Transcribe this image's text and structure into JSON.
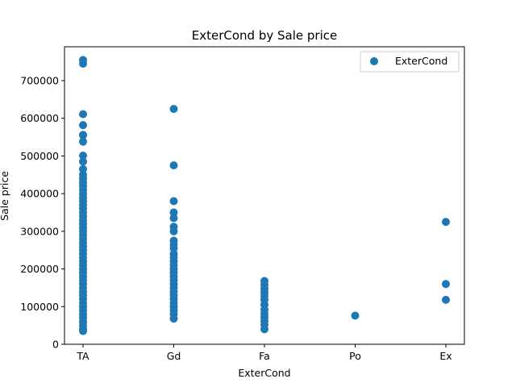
{
  "chart_data": {
    "type": "scatter",
    "title": "ExterCond by Sale price",
    "xlabel": "ExterCond",
    "ylabel": "Sale price",
    "categories": [
      "TA",
      "Gd",
      "Fa",
      "Po",
      "Ex"
    ],
    "ylim": [
      0,
      790000
    ],
    "yticks": [
      0,
      100000,
      200000,
      300000,
      400000,
      500000,
      600000,
      700000
    ],
    "ytick_labels": [
      "0",
      "100000",
      "200000",
      "300000",
      "400000",
      "500000",
      "600000",
      "700000"
    ],
    "grid": false,
    "legend_position": "top-right",
    "series": [
      {
        "name": "ExterCond",
        "color": "#1f77b4",
        "points": [
          {
            "x": "TA",
            "y": 755000
          },
          {
            "x": "TA",
            "y": 745000
          },
          {
            "x": "TA",
            "y": 611000
          },
          {
            "x": "TA",
            "y": 582000
          },
          {
            "x": "TA",
            "y": 556000
          },
          {
            "x": "TA",
            "y": 555000
          },
          {
            "x": "TA",
            "y": 538000
          },
          {
            "x": "TA",
            "y": 501000
          },
          {
            "x": "TA",
            "y": 485000
          },
          {
            "x": "TA",
            "y": 465000
          },
          {
            "x": "TA",
            "y": 450000
          },
          {
            "x": "TA",
            "y": 440000
          },
          {
            "x": "TA",
            "y": 430000
          },
          {
            "x": "TA",
            "y": 420000
          },
          {
            "x": "TA",
            "y": 410000
          },
          {
            "x": "TA",
            "y": 400000
          },
          {
            "x": "TA",
            "y": 390000
          },
          {
            "x": "TA",
            "y": 380000
          },
          {
            "x": "TA",
            "y": 370000
          },
          {
            "x": "TA",
            "y": 360000
          },
          {
            "x": "TA",
            "y": 350000
          },
          {
            "x": "TA",
            "y": 340000
          },
          {
            "x": "TA",
            "y": 330000
          },
          {
            "x": "TA",
            "y": 320000
          },
          {
            "x": "TA",
            "y": 310000
          },
          {
            "x": "TA",
            "y": 300000
          },
          {
            "x": "TA",
            "y": 290000
          },
          {
            "x": "TA",
            "y": 280000
          },
          {
            "x": "TA",
            "y": 270000
          },
          {
            "x": "TA",
            "y": 260000
          },
          {
            "x": "TA",
            "y": 250000
          },
          {
            "x": "TA",
            "y": 240000
          },
          {
            "x": "TA",
            "y": 230000
          },
          {
            "x": "TA",
            "y": 220000
          },
          {
            "x": "TA",
            "y": 210000
          },
          {
            "x": "TA",
            "y": 200000
          },
          {
            "x": "TA",
            "y": 190000
          },
          {
            "x": "TA",
            "y": 180000
          },
          {
            "x": "TA",
            "y": 170000
          },
          {
            "x": "TA",
            "y": 160000
          },
          {
            "x": "TA",
            "y": 150000
          },
          {
            "x": "TA",
            "y": 140000
          },
          {
            "x": "TA",
            "y": 130000
          },
          {
            "x": "TA",
            "y": 120000
          },
          {
            "x": "TA",
            "y": 110000
          },
          {
            "x": "TA",
            "y": 100000
          },
          {
            "x": "TA",
            "y": 90000
          },
          {
            "x": "TA",
            "y": 80000
          },
          {
            "x": "TA",
            "y": 70000
          },
          {
            "x": "TA",
            "y": 60000
          },
          {
            "x": "TA",
            "y": 50000
          },
          {
            "x": "TA",
            "y": 40000
          },
          {
            "x": "TA",
            "y": 35000
          },
          {
            "x": "Gd",
            "y": 625000
          },
          {
            "x": "Gd",
            "y": 475000
          },
          {
            "x": "Gd",
            "y": 380000
          },
          {
            "x": "Gd",
            "y": 350000
          },
          {
            "x": "Gd",
            "y": 335000
          },
          {
            "x": "Gd",
            "y": 312000
          },
          {
            "x": "Gd",
            "y": 300000
          },
          {
            "x": "Gd",
            "y": 275000
          },
          {
            "x": "Gd",
            "y": 265000
          },
          {
            "x": "Gd",
            "y": 255000
          },
          {
            "x": "Gd",
            "y": 240000
          },
          {
            "x": "Gd",
            "y": 230000
          },
          {
            "x": "Gd",
            "y": 220000
          },
          {
            "x": "Gd",
            "y": 210000
          },
          {
            "x": "Gd",
            "y": 200000
          },
          {
            "x": "Gd",
            "y": 190000
          },
          {
            "x": "Gd",
            "y": 180000
          },
          {
            "x": "Gd",
            "y": 170000
          },
          {
            "x": "Gd",
            "y": 160000
          },
          {
            "x": "Gd",
            "y": 150000
          },
          {
            "x": "Gd",
            "y": 140000
          },
          {
            "x": "Gd",
            "y": 130000
          },
          {
            "x": "Gd",
            "y": 120000
          },
          {
            "x": "Gd",
            "y": 110000
          },
          {
            "x": "Gd",
            "y": 100000
          },
          {
            "x": "Gd",
            "y": 90000
          },
          {
            "x": "Gd",
            "y": 80000
          },
          {
            "x": "Gd",
            "y": 68000
          },
          {
            "x": "Fa",
            "y": 168000
          },
          {
            "x": "Fa",
            "y": 158000
          },
          {
            "x": "Fa",
            "y": 148000
          },
          {
            "x": "Fa",
            "y": 138000
          },
          {
            "x": "Fa",
            "y": 128000
          },
          {
            "x": "Fa",
            "y": 118000
          },
          {
            "x": "Fa",
            "y": 105000
          },
          {
            "x": "Fa",
            "y": 92000
          },
          {
            "x": "Fa",
            "y": 82000
          },
          {
            "x": "Fa",
            "y": 72000
          },
          {
            "x": "Fa",
            "y": 62000
          },
          {
            "x": "Fa",
            "y": 52000
          },
          {
            "x": "Fa",
            "y": 40000
          },
          {
            "x": "Po",
            "y": 76000
          },
          {
            "x": "Ex",
            "y": 325000
          },
          {
            "x": "Ex",
            "y": 160000
          },
          {
            "x": "Ex",
            "y": 118000
          }
        ]
      }
    ]
  }
}
